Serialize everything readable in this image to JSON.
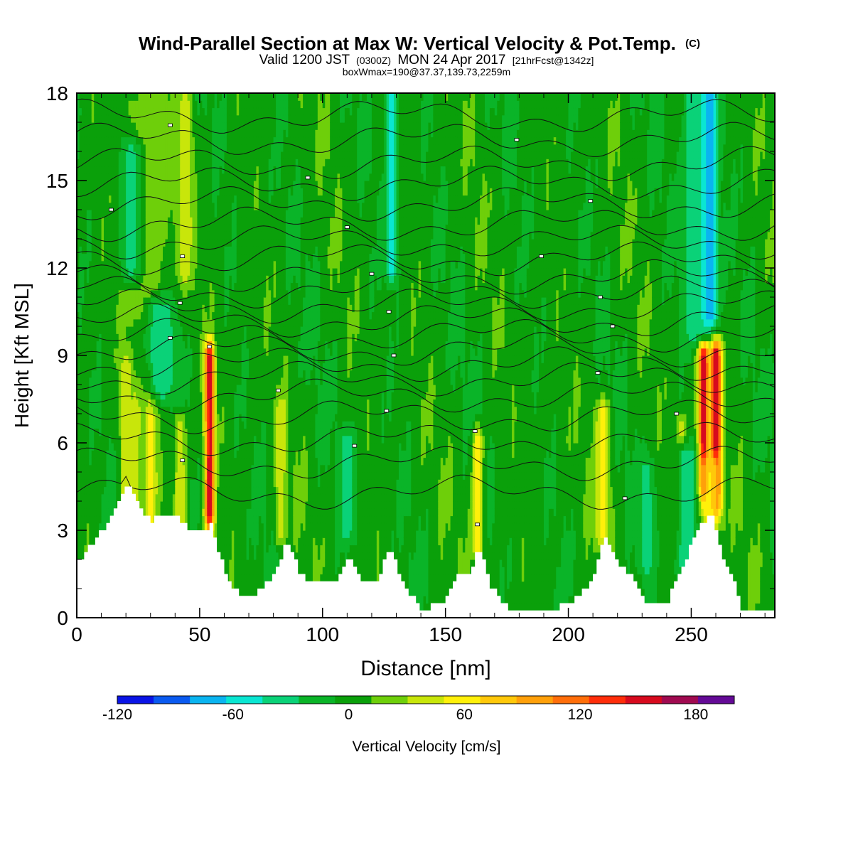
{
  "chart_data": {
    "type": "heatmap",
    "title": "Wind-Parallel Section at Max W: Vertical Velocity & Pot.Temp.",
    "title_suffix": "(C)",
    "subtitle_parts": {
      "main_a": "Valid 1200 JST",
      "small_a": "(0300Z)",
      "main_b": "MON 24 Apr 2017",
      "small_b": "[21hrFcst@1342z]"
    },
    "subtitle2": "boxWmax=190@37.37,139.73,2259m",
    "xlabel": "Distance [nm]",
    "ylabel": "Height [Kft MSL]",
    "xlim": [
      0,
      284
    ],
    "ylim": [
      0,
      18
    ],
    "xticks": [
      "0",
      "50",
      "100",
      "150",
      "200",
      "250"
    ],
    "xtick_values": [
      0,
      50,
      100,
      150,
      200,
      250
    ],
    "yticks": [
      "0",
      "3",
      "6",
      "9",
      "12",
      "15",
      "18"
    ],
    "ytick_values": [
      0,
      3,
      6,
      9,
      12,
      15,
      18
    ],
    "terrain": {
      "x": [
        0,
        3,
        6,
        10,
        14,
        18,
        20,
        22,
        25,
        30,
        35,
        40,
        45,
        50,
        54,
        58,
        62,
        66,
        70,
        75,
        80,
        85,
        90,
        95,
        100,
        105,
        110,
        115,
        120,
        123,
        127,
        130,
        135,
        140,
        145,
        150,
        155,
        160,
        163,
        168,
        175,
        185,
        195,
        205,
        210,
        214,
        220,
        225,
        230,
        235,
        240,
        246,
        250,
        256,
        258,
        262,
        266,
        270,
        275,
        280,
        284
      ],
      "height_kft": [
        1.9,
        2.2,
        2.6,
        3.0,
        3.6,
        4.3,
        4.7,
        4.3,
        3.8,
        3.3,
        3.6,
        3.5,
        3.0,
        2.9,
        3.2,
        2.0,
        1.1,
        0.8,
        0.6,
        1.0,
        1.6,
        2.6,
        1.6,
        1.2,
        1.2,
        1.3,
        2.1,
        1.3,
        1.2,
        1.5,
        2.5,
        1.6,
        0.8,
        0.3,
        0.4,
        0.7,
        1.5,
        1.6,
        2.5,
        1.1,
        0.3,
        0.3,
        0.3,
        0.8,
        1.6,
        2.8,
        1.9,
        1.5,
        0.6,
        0.5,
        0.6,
        1.8,
        2.6,
        3.5,
        3.4,
        2.1,
        1.4,
        0.3,
        0.3,
        0.3,
        0.3
      ]
    },
    "features": [
      {
        "x": 20,
        "w": 2.5,
        "z0": 3.8,
        "z1": 8.6,
        "value": 55
      },
      {
        "x": 24,
        "w": 2.0,
        "z0": 3.2,
        "z1": 7.3,
        "value": 50
      },
      {
        "x": 30,
        "w": 2.6,
        "z0": 3.2,
        "z1": 8.0,
        "value": 65
      },
      {
        "x": 28,
        "w": 9.0,
        "z0": 10.5,
        "z1": 17.5,
        "value": 35
      },
      {
        "x": 34,
        "w": 6.0,
        "z0": 8.0,
        "z1": 10.5,
        "value": -35
      },
      {
        "x": 22,
        "w": 5.0,
        "z0": 12.0,
        "z1": 16.0,
        "value": -25
      },
      {
        "x": 42,
        "w": 2.3,
        "z0": 3.0,
        "z1": 6.5,
        "value": 60
      },
      {
        "x": 44,
        "w": 3.0,
        "z0": 12.0,
        "z1": 17.5,
        "value": 55
      },
      {
        "x": 54,
        "w": 2.0,
        "z0": 3.5,
        "z1": 9.0,
        "value": 170
      },
      {
        "x": 83,
        "w": 2.0,
        "z0": 3.0,
        "z1": 7.0,
        "value": 60
      },
      {
        "x": 110,
        "w": 3.0,
        "z0": 3.0,
        "z1": 6.0,
        "value": -30
      },
      {
        "x": 128,
        "w": 2.5,
        "z0": 12.0,
        "z1": 18.0,
        "value": -45
      },
      {
        "x": 163,
        "w": 2.2,
        "z0": 2.5,
        "z1": 6.0,
        "value": 70
      },
      {
        "x": 214,
        "w": 3.0,
        "z0": 3.0,
        "z1": 7.0,
        "value": 65
      },
      {
        "x": 246,
        "w": 2.0,
        "z0": 3.5,
        "z1": 6.5,
        "value": 55
      },
      {
        "x": 255,
        "w": 2.2,
        "z0": 4.5,
        "z1": 9.0,
        "value": 180
      },
      {
        "x": 260,
        "w": 2.2,
        "z0": 4.0,
        "z1": 9.0,
        "value": 185
      },
      {
        "x": 258,
        "w": 4.0,
        "z0": 3.5,
        "z1": 5.0,
        "value": 80
      },
      {
        "x": 257,
        "w": 3.5,
        "z0": 10.5,
        "z1": 18.0,
        "value": -95
      },
      {
        "x": 252,
        "w": 5.0,
        "z0": 10.0,
        "z1": 18.0,
        "value": -40
      },
      {
        "x": 248,
        "w": 4.0,
        "z0": 1.8,
        "z1": 5.5,
        "value": -35
      },
      {
        "x": 232,
        "w": 3.0,
        "z0": 2.0,
        "z1": 5.0,
        "value": -30
      }
    ],
    "isentropes_kft": [
      4.3,
      5.3,
      6.1,
      6.9,
      7.6,
      8.2,
      8.7,
      9.2,
      9.7,
      10.2,
      10.7,
      11.2,
      11.7,
      12.3,
      12.9,
      13.5,
      14.2,
      14.9,
      15.6,
      16.4,
      17.2
    ],
    "isentrope_labels": [
      {
        "x": 14,
        "z": 14.0
      },
      {
        "x": 38,
        "z": 16.9
      },
      {
        "x": 43,
        "z": 12.4
      },
      {
        "x": 42,
        "z": 10.8
      },
      {
        "x": 38,
        "z": 9.6
      },
      {
        "x": 54,
        "z": 9.3
      },
      {
        "x": 43,
        "z": 5.4
      },
      {
        "x": 82,
        "z": 7.8
      },
      {
        "x": 94,
        "z": 15.1
      },
      {
        "x": 110,
        "z": 13.4
      },
      {
        "x": 113,
        "z": 5.9
      },
      {
        "x": 120,
        "z": 11.8
      },
      {
        "x": 127,
        "z": 10.5
      },
      {
        "x": 129,
        "z": 9.0
      },
      {
        "x": 126,
        "z": 7.1
      },
      {
        "x": 162,
        "z": 6.4
      },
      {
        "x": 163,
        "z": 3.2
      },
      {
        "x": 179,
        "z": 16.4
      },
      {
        "x": 189,
        "z": 12.4
      },
      {
        "x": 209,
        "z": 14.3
      },
      {
        "x": 213,
        "z": 11.0
      },
      {
        "x": 218,
        "z": 10.0
      },
      {
        "x": 212,
        "z": 8.4
      },
      {
        "x": 223,
        "z": 4.1
      },
      {
        "x": 244,
        "z": 7.0
      }
    ],
    "colorbar": {
      "label": "Vertical Velocity [cm/s]",
      "tick_labels": [
        "-120",
        "-60",
        "0",
        "60",
        "120",
        "180"
      ],
      "tick_values": [
        -120,
        -60,
        0,
        60,
        120,
        180
      ],
      "bounds": [
        -120,
        -100,
        -80,
        -60,
        -40,
        -20,
        0,
        20,
        40,
        60,
        80,
        100,
        120,
        140,
        160,
        180,
        200
      ],
      "colors": [
        "#0a14e6",
        "#0a5af0",
        "#0ab4f0",
        "#0ae6d2",
        "#0ad278",
        "#0ab428",
        "#0aa00a",
        "#6ecf0a",
        "#c8e60a",
        "#fff00a",
        "#ffc80a",
        "#ffa00a",
        "#ff6e0a",
        "#ff2d0a",
        "#d70a1e",
        "#a00a50",
        "#640a96"
      ]
    }
  }
}
